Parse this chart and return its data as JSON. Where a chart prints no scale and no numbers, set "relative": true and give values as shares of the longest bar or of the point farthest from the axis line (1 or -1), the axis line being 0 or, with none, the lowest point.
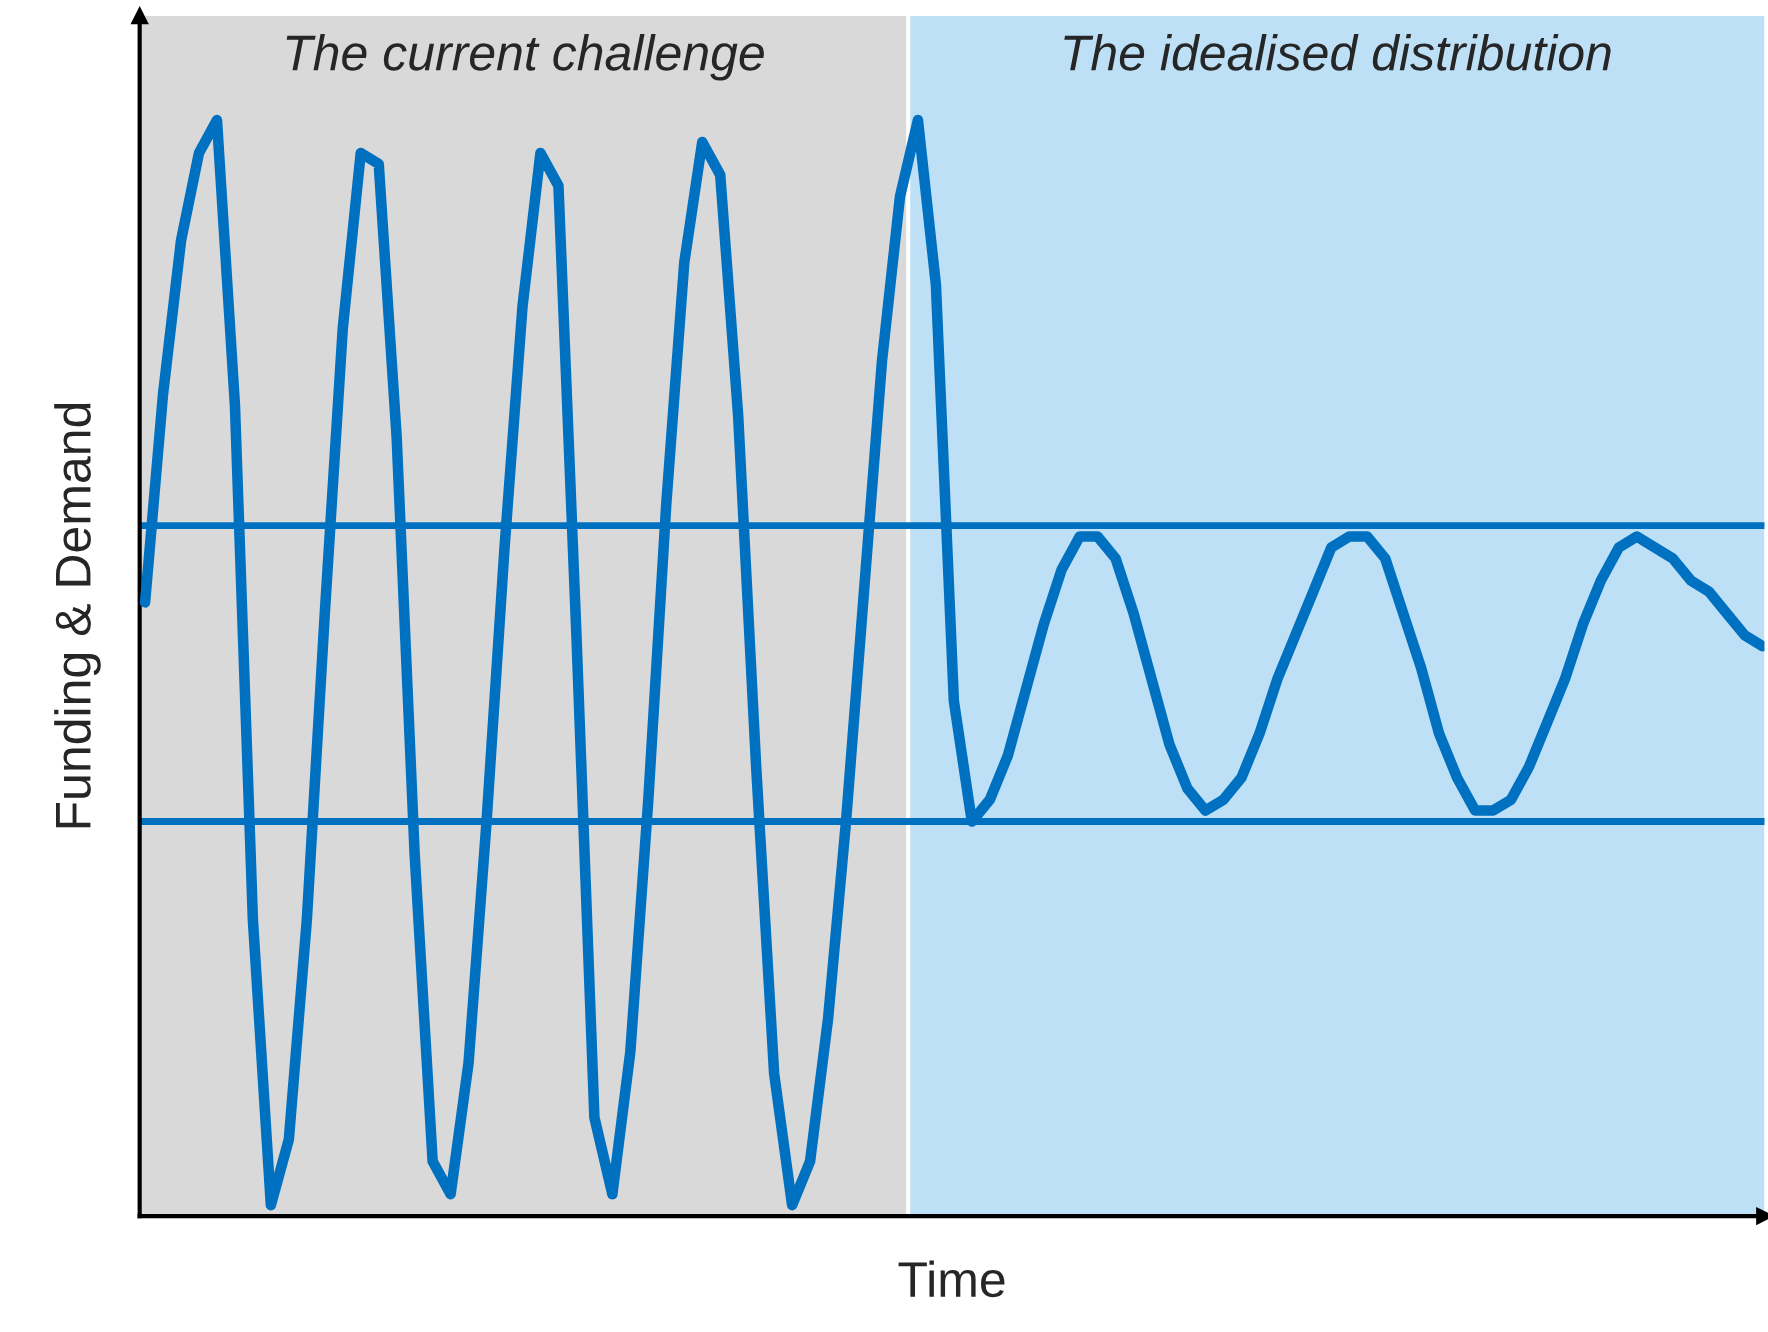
{
  "chart_data": {
    "type": "line",
    "relative": true,
    "annotations": [
      "The current challenge",
      "The idealised distribution"
    ],
    "xlabel": "Time",
    "ylabel": "Funding & Demand",
    "categories": [
      null,
      null,
      null,
      null,
      null,
      null,
      null,
      null,
      null,
      null,
      null,
      null,
      null,
      null,
      null,
      null,
      null,
      null,
      null,
      null,
      null,
      null,
      null,
      null,
      null,
      null,
      null,
      null,
      null,
      null,
      null,
      null,
      null,
      null,
      null,
      null,
      null,
      null,
      null,
      null,
      null,
      null,
      null,
      null,
      null,
      null,
      null,
      null,
      null,
      null,
      null,
      null,
      null,
      null,
      null,
      null,
      null,
      null,
      null,
      null,
      null,
      null,
      null,
      null,
      null,
      null,
      null,
      null,
      null,
      null,
      null,
      null,
      null,
      null,
      null,
      null,
      null,
      null,
      null,
      null,
      null,
      null,
      null,
      null,
      null,
      null,
      null,
      null,
      null,
      null,
      null
    ],
    "series": [
      {
        "color": "#0070c0",
        "values": [
          0.56,
          0.75,
          0.89,
          0.97,
          1.0,
          0.74,
          0.27,
          0.01,
          0.07,
          0.27,
          0.55,
          0.81,
          0.97,
          0.96,
          0.71,
          0.33,
          0.05,
          0.02,
          0.14,
          0.36,
          0.61,
          0.83,
          0.97,
          0.94,
          0.53,
          0.09,
          0.02,
          0.15,
          0.38,
          0.65,
          0.87,
          0.98,
          0.95,
          0.73,
          0.41,
          0.13,
          0.01,
          0.05,
          0.18,
          0.36,
          0.57,
          0.78,
          0.93,
          1.0,
          0.85,
          0.47,
          0.36,
          0.38,
          0.42,
          0.48,
          0.54,
          0.59,
          0.62,
          0.62,
          0.6,
          0.55,
          0.49,
          0.43,
          0.39,
          0.37,
          0.38,
          0.4,
          0.44,
          0.49,
          0.53,
          0.57,
          0.61,
          0.62,
          0.62,
          0.6,
          0.55,
          0.5,
          0.44,
          0.4,
          0.37,
          0.37,
          0.38,
          0.41,
          0.45,
          0.49,
          0.54,
          0.58,
          0.61,
          0.62,
          0.61,
          0.6,
          0.58,
          0.57,
          0.55,
          0.53,
          0.52
        ]
      }
    ],
    "ref_lines": [
      {
        "axis": "y",
        "value": 0.63,
        "color": "#0070c0"
      },
      {
        "axis": "y",
        "value": 0.36,
        "color": "#0070c0"
      }
    ]
  }
}
